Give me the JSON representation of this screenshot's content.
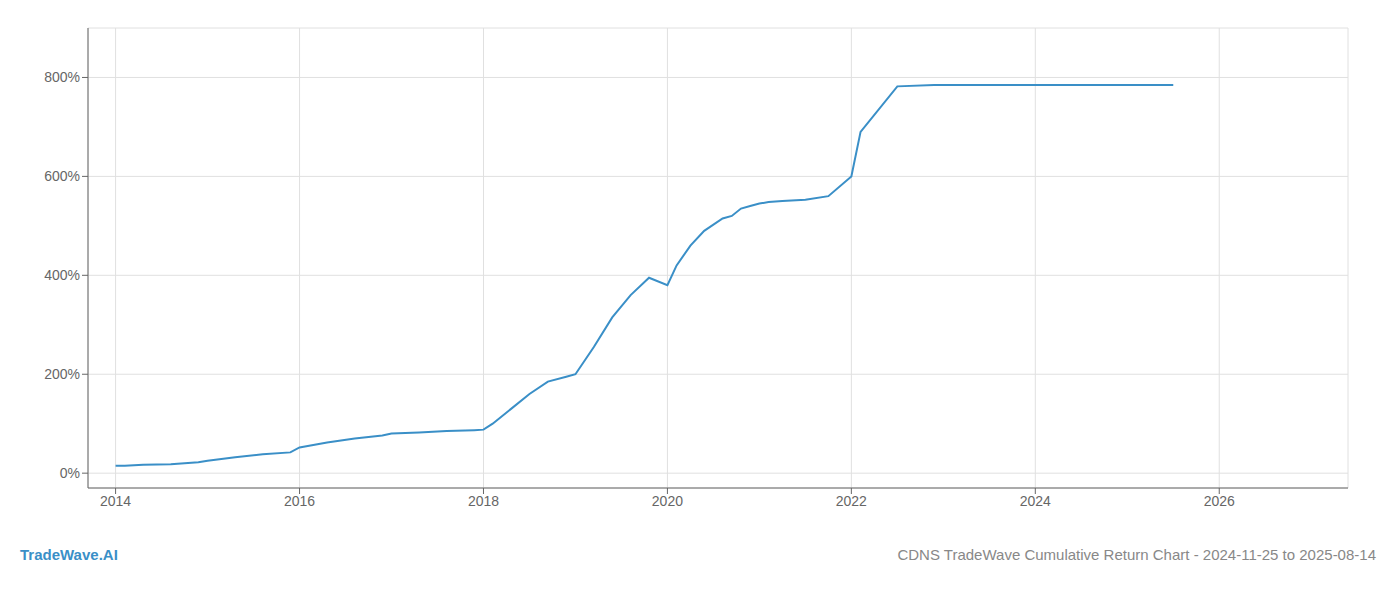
{
  "chart_data": {
    "type": "line",
    "title": "CDNS TradeWave Cumulative Return Chart - 2024-11-25 to 2025-08-14",
    "annotations": [
      "TradeWave.AI"
    ],
    "color": "#3a8fc7",
    "x": [
      2014.0,
      2014.1,
      2014.3,
      2014.6,
      2014.9,
      2015.0,
      2015.3,
      2015.6,
      2015.9,
      2016.0,
      2016.3,
      2016.6,
      2016.9,
      2017.0,
      2017.3,
      2017.6,
      2017.9,
      2018.0,
      2018.1,
      2018.3,
      2018.5,
      2018.7,
      2018.9,
      2019.0,
      2019.2,
      2019.4,
      2019.6,
      2019.8,
      2020.0,
      2020.1,
      2020.25,
      2020.4,
      2020.6,
      2020.7,
      2020.8,
      2020.9,
      2021.0,
      2021.1,
      2021.25,
      2021.5,
      2021.75,
      2022.0,
      2022.1,
      2022.5,
      2022.9,
      2023.0,
      2023.5,
      2024.0,
      2024.5,
      2025.0,
      2025.5
    ],
    "values": [
      15,
      15,
      17,
      18,
      22,
      25,
      32,
      38,
      42,
      52,
      62,
      70,
      76,
      80,
      82,
      85,
      87,
      88,
      100,
      130,
      160,
      185,
      195,
      200,
      255,
      315,
      360,
      395,
      380,
      420,
      460,
      490,
      515,
      520,
      535,
      540,
      545,
      548,
      550,
      553,
      560,
      600,
      690,
      782,
      785,
      785,
      785,
      785,
      785,
      785,
      785
    ],
    "xlim": [
      2013.7,
      2027.4
    ],
    "xticks": [
      2014,
      2016,
      2018,
      2020,
      2022,
      2024,
      2026
    ],
    "ylim": [
      -30,
      900
    ],
    "yticks": [
      {
        "value": 0,
        "label": "0%"
      },
      {
        "value": 200,
        "label": "200%"
      },
      {
        "value": 400,
        "label": "400%"
      },
      {
        "value": 600,
        "label": "600%"
      },
      {
        "value": 800,
        "label": "800%"
      }
    ],
    "grid": true
  }
}
